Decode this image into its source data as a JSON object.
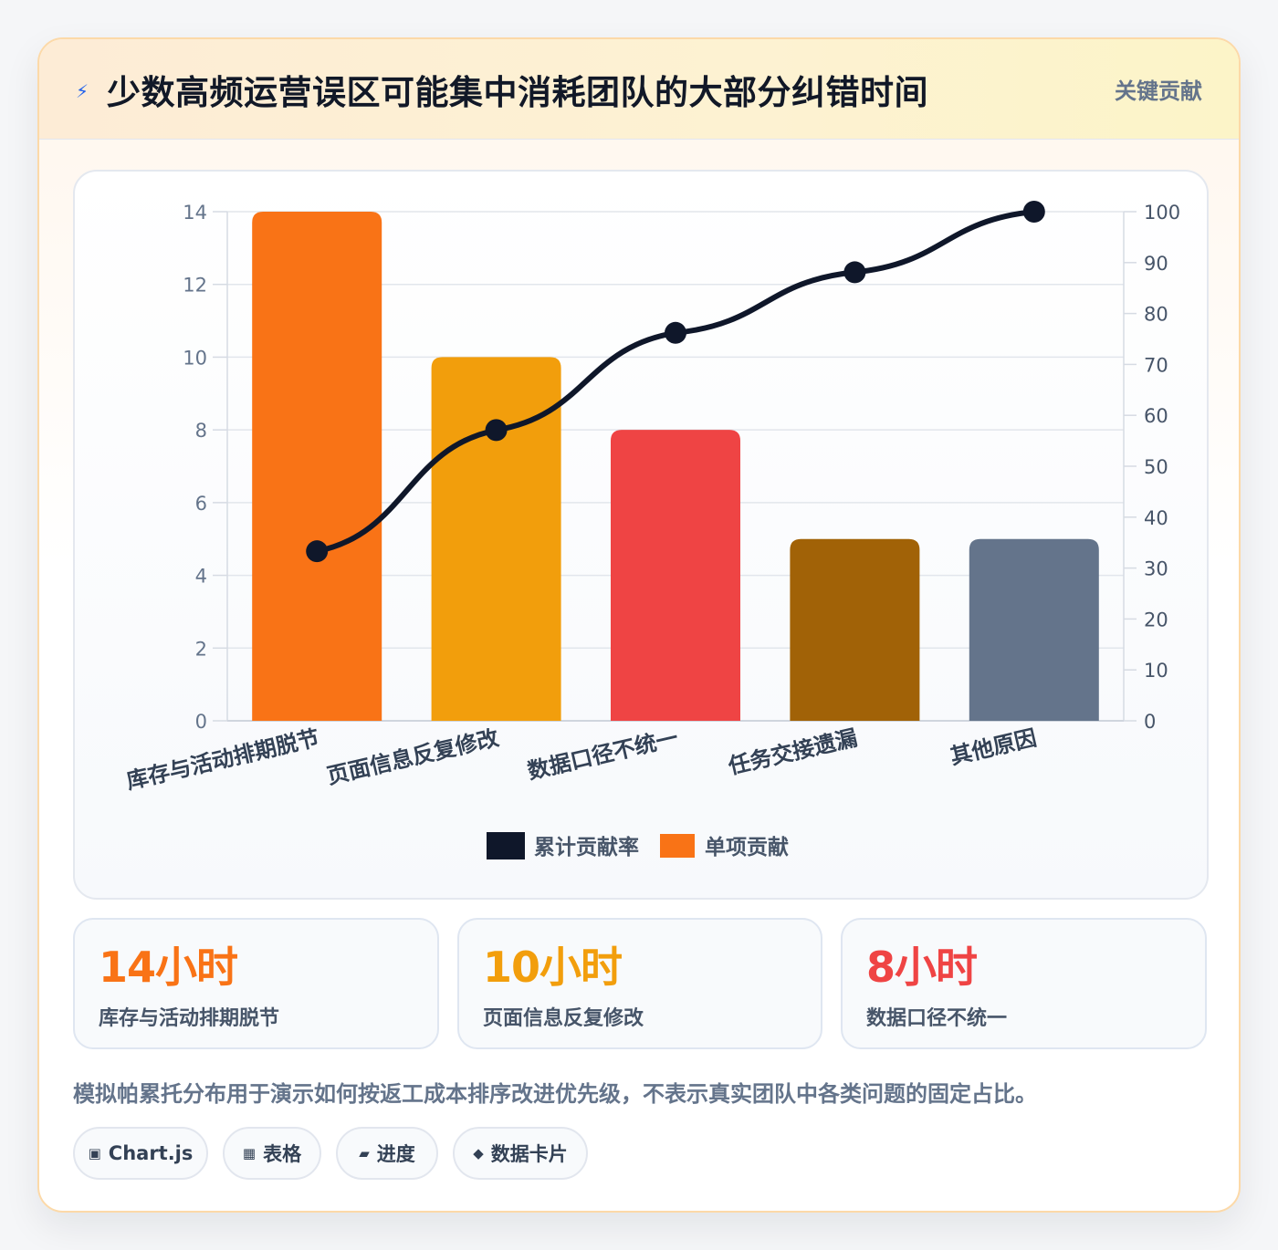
{
  "header": {
    "icon": "lightning-bolt-icon",
    "title": "少数高频运营误区可能集中消耗团队的大部分纠错时间",
    "badge": "关键贡献"
  },
  "chart_data": {
    "type": "bar",
    "categories": [
      "库存与活动排期脱节",
      "页面信息反复修改",
      "数据口径不统一",
      "任务交接遗漏",
      "其他原因"
    ],
    "series": [
      {
        "name": "单项贡献",
        "type": "bar",
        "axis": "left",
        "values": [
          14,
          10,
          8,
          5,
          5
        ],
        "colors": [
          "#f97316",
          "#f29e0c",
          "#ef4444",
          "#a16207",
          "#64748b"
        ]
      },
      {
        "name": "累计贡献率",
        "type": "line",
        "axis": "right",
        "values": [
          33.3,
          57.1,
          76.2,
          88.1,
          100
        ],
        "color": "#0f172a"
      }
    ],
    "yleft": {
      "ticks": [
        0,
        2,
        4,
        6,
        8,
        10,
        12,
        14
      ],
      "ylim": [
        0,
        14
      ]
    },
    "yright": {
      "ticks": [
        0,
        10,
        20,
        30,
        40,
        50,
        60,
        70,
        80,
        90,
        100
      ],
      "ylim": [
        0,
        100
      ]
    },
    "legend": [
      {
        "label": "累计贡献率",
        "color": "#0f172a"
      },
      {
        "label": "单项贡献",
        "color": "#f97316"
      }
    ],
    "legend_position": "bottom",
    "grid": true
  },
  "stats": [
    {
      "value": "14小时",
      "label": "库存与活动排期脱节",
      "color": "#f97316"
    },
    {
      "value": "10小时",
      "label": "页面信息反复修改",
      "color": "#f29e0c"
    },
    {
      "value": "8小时",
      "label": "数据口径不统一",
      "color": "#ef4444"
    }
  ],
  "note": "模拟帕累托分布用于演示如何按返工成本排序改进优先级，不表示真实团队中各类问题的固定占比。",
  "tags": [
    {
      "icon": "▣",
      "label": "Chart.js"
    },
    {
      "icon": "▦",
      "label": "表格"
    },
    {
      "icon": "▰",
      "label": "进度"
    },
    {
      "icon": "◆",
      "label": "数据卡片"
    }
  ]
}
